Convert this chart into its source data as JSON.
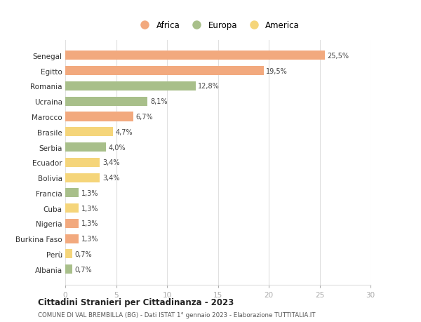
{
  "countries": [
    "Senegal",
    "Egitto",
    "Romania",
    "Ucraina",
    "Marocco",
    "Brasile",
    "Serbia",
    "Ecuador",
    "Bolivia",
    "Francia",
    "Cuba",
    "Nigeria",
    "Burkina Faso",
    "Perù",
    "Albania"
  ],
  "values": [
    25.5,
    19.5,
    12.8,
    8.1,
    6.7,
    4.7,
    4.0,
    3.4,
    3.4,
    1.3,
    1.3,
    1.3,
    1.3,
    0.7,
    0.7
  ],
  "labels": [
    "25,5%",
    "19,5%",
    "12,8%",
    "8,1%",
    "6,7%",
    "4,7%",
    "4,0%",
    "3,4%",
    "3,4%",
    "1,3%",
    "1,3%",
    "1,3%",
    "1,3%",
    "0,7%",
    "0,7%"
  ],
  "continents": [
    "Africa",
    "Africa",
    "Europa",
    "Europa",
    "Africa",
    "America",
    "Europa",
    "America",
    "America",
    "Europa",
    "America",
    "Africa",
    "Africa",
    "America",
    "Europa"
  ],
  "colors": {
    "Africa": "#F2A97E",
    "Europa": "#A8BF8A",
    "America": "#F5D57A"
  },
  "xlim": [
    0,
    30
  ],
  "xticks": [
    0,
    5,
    10,
    15,
    20,
    25,
    30
  ],
  "title_main": "Cittadini Stranieri per Cittadinanza - 2023",
  "title_sub": "COMUNE DI VAL BREMBILLA (BG) - Dati ISTAT 1° gennaio 2023 - Elaborazione TUTTITALIA.IT",
  "background_color": "#ffffff",
  "grid_color": "#e0e0e0",
  "bar_height": 0.6,
  "legend_items": [
    "Africa",
    "Europa",
    "America"
  ]
}
